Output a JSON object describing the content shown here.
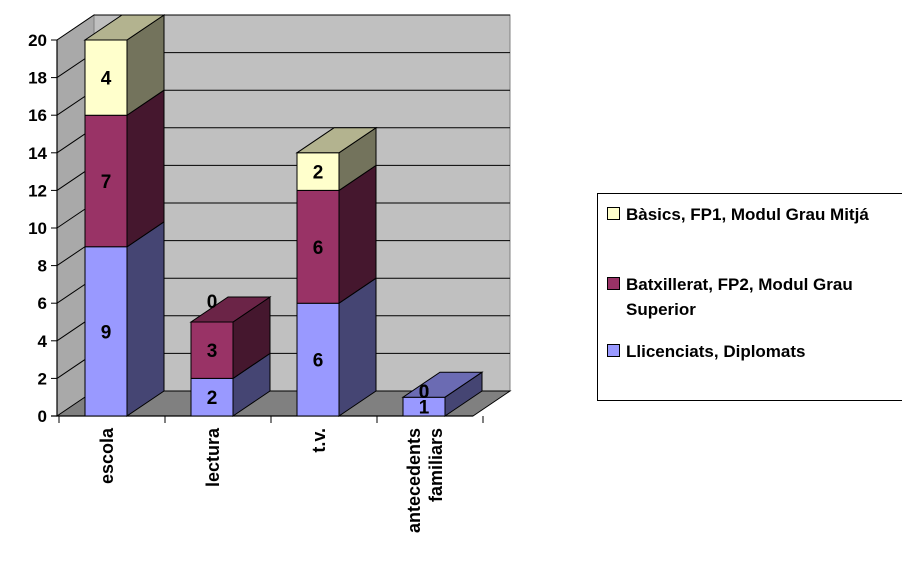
{
  "chart_data": {
    "type": "bar",
    "stacked": true,
    "three_d": true,
    "categories": [
      "escola",
      "lectura",
      "t.v.",
      "antecedents familiars"
    ],
    "series": [
      {
        "name": "Llicenciats, Diplomats",
        "values": [
          9,
          2,
          6,
          1
        ],
        "labels": [
          "9",
          "2",
          "6",
          "1"
        ],
        "color": "#9999ff"
      },
      {
        "name": "Batxillerat, FP2, Modul Grau Superior",
        "values": [
          7,
          3,
          6,
          0
        ],
        "labels": [
          "7",
          "3",
          "6",
          "0"
        ],
        "color": "#993366"
      },
      {
        "name": "Bàsics, FP1, Modul Grau Mitjá",
        "values": [
          4,
          0,
          2,
          0
        ],
        "labels": [
          "4",
          "0",
          "2",
          "0"
        ],
        "color": "#ffffcc"
      }
    ],
    "ylim": [
      0,
      20
    ],
    "yticks": [
      0,
      2,
      4,
      6,
      8,
      10,
      12,
      14,
      16,
      18,
      20
    ],
    "grid": true,
    "legend_position": "right"
  }
}
